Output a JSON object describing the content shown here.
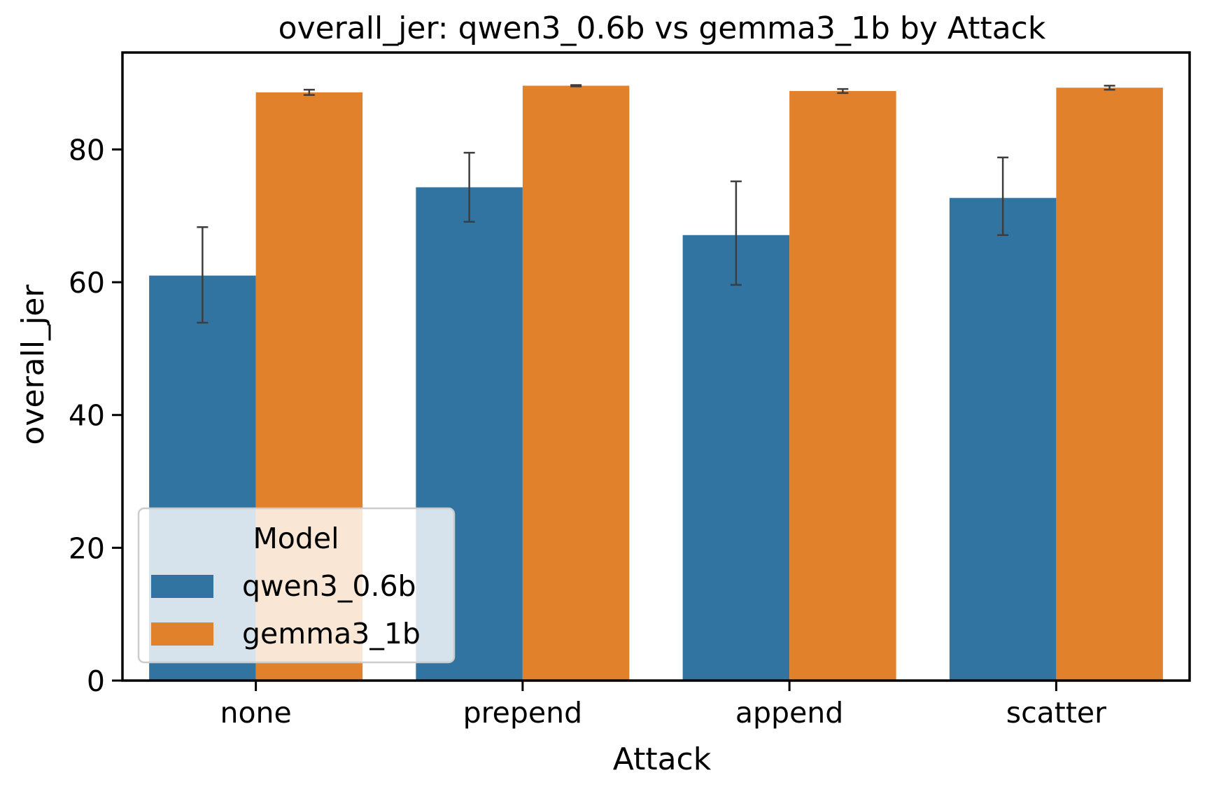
{
  "chart_data": {
    "type": "bar",
    "title": "overall_jer: qwen3_0.6b vs gemma3_1b by Attack",
    "xlabel": "Attack",
    "ylabel": "overall_jer",
    "categories": [
      "none",
      "prepend",
      "append",
      "scatter"
    ],
    "series": [
      {
        "name": "qwen3_0.6b",
        "color": "#3274a1",
        "values": [
          61.0,
          74.3,
          67.1,
          72.7
        ],
        "error_low": [
          53.9,
          69.1,
          59.6,
          67.1
        ],
        "error_high": [
          68.3,
          79.5,
          75.2,
          78.8
        ]
      },
      {
        "name": "gemma3_1b",
        "color": "#e1812c",
        "values": [
          88.6,
          89.6,
          88.8,
          89.3
        ],
        "error_low": [
          88.2,
          89.5,
          88.5,
          89.0
        ],
        "error_high": [
          89.0,
          89.7,
          89.1,
          89.6
        ]
      }
    ],
    "ylim": [
      0,
      94.6
    ],
    "yticks": [
      0,
      20,
      40,
      60,
      80
    ],
    "grid": false,
    "legend": {
      "title": "Model",
      "placement": "lower-left"
    }
  }
}
